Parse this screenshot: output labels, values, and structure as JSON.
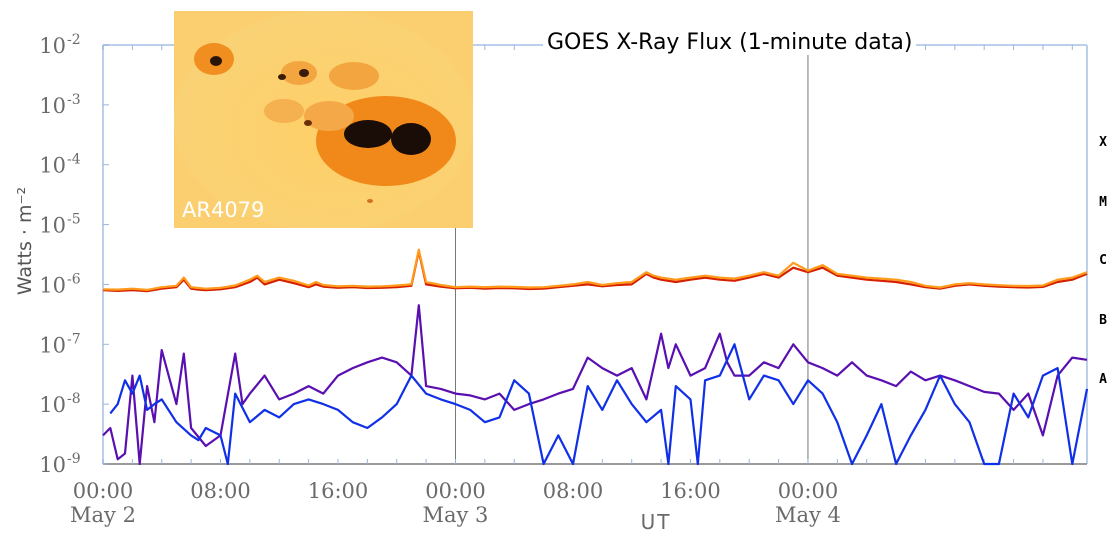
{
  "chart_data": {
    "type": "line",
    "title": "GOES X-Ray Flux (1-minute data)",
    "ylabel": "Watts · m⁻²",
    "xlabel": "UT",
    "yscale": "log",
    "ylim": [
      1e-09,
      0.01
    ],
    "xlim_hours": [
      0,
      67
    ],
    "y_ticks": [
      {
        "base": "10",
        "exp": "-9"
      },
      {
        "base": "10",
        "exp": "-8"
      },
      {
        "base": "10",
        "exp": "-7"
      },
      {
        "base": "10",
        "exp": "-6"
      },
      {
        "base": "10",
        "exp": "-5"
      },
      {
        "base": "10",
        "exp": "-4"
      },
      {
        "base": "10",
        "exp": "-3"
      },
      {
        "base": "10",
        "exp": "-2"
      }
    ],
    "x_ticks": [
      {
        "time": "00:00",
        "date": "May 2"
      },
      {
        "time": "08:00",
        "date": ""
      },
      {
        "time": "16:00",
        "date": ""
      },
      {
        "time": "00:00",
        "date": "May 3"
      },
      {
        "time": "08:00",
        "date": ""
      },
      {
        "time": "16:00",
        "date": ""
      },
      {
        "time": "00:00",
        "date": "May 4"
      }
    ],
    "flare_classes": [
      "X",
      "M",
      "C",
      "B",
      "A"
    ],
    "grid": false,
    "day_boundaries": [
      "May 3 00:00",
      "May 4 00:00"
    ],
    "series": [
      {
        "color": "#d62000",
        "x": [
          0,
          1,
          2,
          3,
          4,
          5,
          5.5,
          6,
          6.5,
          7,
          8,
          9,
          10,
          10.5,
          11,
          12,
          13,
          14,
          14.5,
          15,
          16,
          17,
          18,
          19,
          20,
          21,
          21.5,
          22,
          23,
          24,
          25,
          26,
          27,
          28,
          29,
          30,
          31,
          32,
          33,
          34,
          35,
          36,
          37,
          37.5,
          38,
          39,
          40,
          41,
          42,
          43,
          44,
          45,
          46,
          47,
          48,
          49,
          50,
          51,
          52,
          53,
          54,
          55,
          56,
          57,
          58,
          59,
          60,
          61,
          62,
          63,
          64,
          65,
          66,
          67
        ],
        "y": [
          8e-07,
          7.8e-07,
          8e-07,
          7.7e-07,
          8.5e-07,
          9e-07,
          1.2e-06,
          8.5e-07,
          8.2e-07,
          8e-07,
          8.3e-07,
          9e-07,
          1.1e-06,
          1.3e-06,
          1e-06,
          1.2e-06,
          1.05e-06,
          9e-07,
          1e-06,
          9.2e-07,
          8.8e-07,
          9e-07,
          8.7e-07,
          8.8e-07,
          9e-07,
          9.5e-07,
          3.6e-06,
          1e-06,
          9.2e-07,
          8.6e-07,
          8.8e-07,
          8.5e-07,
          8.7e-07,
          8.6e-07,
          8.4e-07,
          8.5e-07,
          9e-07,
          9.5e-07,
          1e-06,
          9.3e-07,
          9.8e-07,
          1e-06,
          1.5e-06,
          1.3e-06,
          1.2e-06,
          1.1e-06,
          1.2e-06,
          1.3e-06,
          1.2e-06,
          1.15e-06,
          1.3e-06,
          1.5e-06,
          1.3e-06,
          1.9e-06,
          1.6e-06,
          1.9e-06,
          1.4e-06,
          1.3e-06,
          1.2e-06,
          1.15e-06,
          1.1e-06,
          1e-06,
          9e-07,
          8.5e-07,
          9.5e-07,
          1e-06,
          9.5e-07,
          9.2e-07,
          9e-07,
          8.9e-07,
          9.1e-07,
          1.1e-06,
          1.2e-06,
          1.5e-06
        ]
      },
      {
        "color": "#ff9a1a",
        "x": [
          0,
          1,
          2,
          3,
          4,
          5,
          5.5,
          6,
          6.5,
          7,
          8,
          9,
          10,
          10.5,
          11,
          12,
          13,
          14,
          14.5,
          15,
          16,
          17,
          18,
          19,
          20,
          21,
          21.5,
          22,
          23,
          24,
          25,
          26,
          27,
          28,
          29,
          30,
          31,
          32,
          33,
          34,
          35,
          36,
          37,
          37.5,
          38,
          39,
          40,
          41,
          42,
          43,
          44,
          45,
          46,
          47,
          48,
          49,
          50,
          51,
          52,
          53,
          54,
          55,
          56,
          57,
          58,
          59,
          60,
          61,
          62,
          63,
          64,
          65,
          66,
          67
        ],
        "y": [
          8.3e-07,
          8.2e-07,
          8.5e-07,
          8.1e-07,
          9e-07,
          9.5e-07,
          1.3e-06,
          9e-07,
          8.7e-07,
          8.5e-07,
          8.8e-07,
          9.6e-07,
          1.2e-06,
          1.4e-06,
          1.1e-06,
          1.3e-06,
          1.15e-06,
          9.6e-07,
          1.1e-06,
          9.8e-07,
          9.3e-07,
          9.5e-07,
          9.2e-07,
          9.3e-07,
          9.6e-07,
          1e-06,
          3.8e-06,
          1.1e-06,
          9.8e-07,
          9e-07,
          9.2e-07,
          9e-07,
          9.2e-07,
          9.1e-07,
          8.9e-07,
          9e-07,
          9.5e-07,
          1e-06,
          1.1e-06,
          9.8e-07,
          1.05e-06,
          1.1e-06,
          1.6e-06,
          1.4e-06,
          1.3e-06,
          1.2e-06,
          1.3e-06,
          1.4e-06,
          1.3e-06,
          1.25e-06,
          1.4e-06,
          1.6e-06,
          1.4e-06,
          2.3e-06,
          1.7e-06,
          2.1e-06,
          1.5e-06,
          1.4e-06,
          1.3e-06,
          1.25e-06,
          1.2e-06,
          1.1e-06,
          9.5e-07,
          8.9e-07,
          1e-06,
          1.05e-06,
          1e-06,
          9.7e-07,
          9.5e-07,
          9.4e-07,
          9.6e-07,
          1.2e-06,
          1.3e-06,
          1.6e-06
        ]
      },
      {
        "color": "#5a0fb0",
        "x": [
          0,
          0.5,
          1,
          1.5,
          2,
          2.5,
          3,
          3.5,
          4,
          5,
          5.5,
          6,
          7,
          8,
          9,
          9.5,
          10,
          11,
          12,
          13,
          14,
          15,
          16,
          17,
          18,
          19,
          20,
          21,
          21.5,
          22,
          23,
          24,
          25,
          26,
          27,
          28,
          29,
          30,
          31,
          32,
          33,
          34,
          35,
          36,
          37,
          38,
          38.5,
          39,
          40,
          41,
          42,
          42.5,
          43,
          44,
          45,
          46,
          47,
          48,
          49,
          50,
          51,
          52,
          53,
          54,
          55,
          56,
          57,
          58,
          59,
          60,
          61,
          62,
          63,
          64,
          65,
          66,
          67
        ],
        "y": [
          3e-09,
          4e-09,
          1.2e-09,
          1.5e-09,
          3e-08,
          1e-09,
          2e-08,
          5e-09,
          8e-08,
          1e-08,
          7e-08,
          4e-09,
          2e-09,
          3e-09,
          7e-08,
          1e-08,
          1.5e-08,
          3e-08,
          1.2e-08,
          1.5e-08,
          2e-08,
          1.5e-08,
          3e-08,
          4e-08,
          5e-08,
          6e-08,
          5e-08,
          3e-08,
          4.5e-07,
          2e-08,
          1.8e-08,
          1.5e-08,
          1.4e-08,
          1.2e-08,
          1.5e-08,
          8e-09,
          1e-08,
          1.2e-08,
          1.5e-08,
          1.8e-08,
          6e-08,
          4e-08,
          3e-08,
          4e-08,
          1.2e-08,
          1.5e-07,
          4e-08,
          1e-07,
          3e-08,
          4e-08,
          1.5e-07,
          5e-08,
          3e-08,
          3e-08,
          5e-08,
          4e-08,
          1e-07,
          5e-08,
          4e-08,
          3e-08,
          5e-08,
          3e-08,
          2.5e-08,
          2e-08,
          3.5e-08,
          2.5e-08,
          3e-08,
          2.5e-08,
          2e-08,
          1.6e-08,
          1.5e-08,
          8e-09,
          1.5e-08,
          3e-09,
          3e-08,
          6e-08,
          5.5e-08
        ]
      },
      {
        "color": "#1030e8",
        "x": [
          0.5,
          1,
          1.5,
          2,
          2.5,
          3,
          3.5,
          4,
          5,
          6,
          6.5,
          7,
          8,
          8.5,
          9,
          10,
          11,
          12,
          13,
          14,
          15,
          16,
          17,
          18,
          19,
          20,
          21,
          22,
          23,
          24,
          25,
          26,
          27,
          28,
          29,
          30,
          31,
          32,
          33,
          34,
          35,
          36,
          37,
          38,
          38.5,
          39,
          40,
          40.5,
          41,
          42,
          43,
          44,
          45,
          46,
          47,
          48,
          49,
          50,
          51,
          52,
          53,
          54,
          55,
          56,
          57,
          58,
          59,
          60,
          61,
          62,
          63,
          64,
          65,
          66,
          67
        ],
        "y": [
          7e-09,
          1e-08,
          2.5e-08,
          1.5e-08,
          3e-08,
          8e-09,
          1e-08,
          1.2e-08,
          5e-09,
          3e-09,
          2.5e-09,
          4e-09,
          3e-09,
          1e-09,
          1.5e-08,
          5e-09,
          8e-09,
          6e-09,
          1e-08,
          1.2e-08,
          1e-08,
          8e-09,
          5e-09,
          4e-09,
          6e-09,
          1e-08,
          3e-08,
          1.5e-08,
          1.2e-08,
          1e-08,
          8e-09,
          5e-09,
          6e-09,
          2.5e-08,
          1.5e-08,
          1e-09,
          3e-09,
          1e-09,
          2e-08,
          8e-09,
          2.5e-08,
          1e-08,
          5e-09,
          8e-09,
          1e-09,
          2e-08,
          1.2e-08,
          1e-09,
          2.5e-08,
          3e-08,
          1e-07,
          1.2e-08,
          3e-08,
          2.5e-08,
          1e-08,
          2.5e-08,
          1.5e-08,
          5e-09,
          1e-09,
          3e-09,
          1e-08,
          1e-09,
          3e-09,
          8e-09,
          3e-08,
          1e-08,
          5e-09,
          1e-09,
          1e-09,
          1.5e-08,
          6e-09,
          3e-08,
          4e-08,
          1e-09,
          1.8e-08
        ]
      }
    ]
  },
  "inset": {
    "label": "AR4079"
  }
}
